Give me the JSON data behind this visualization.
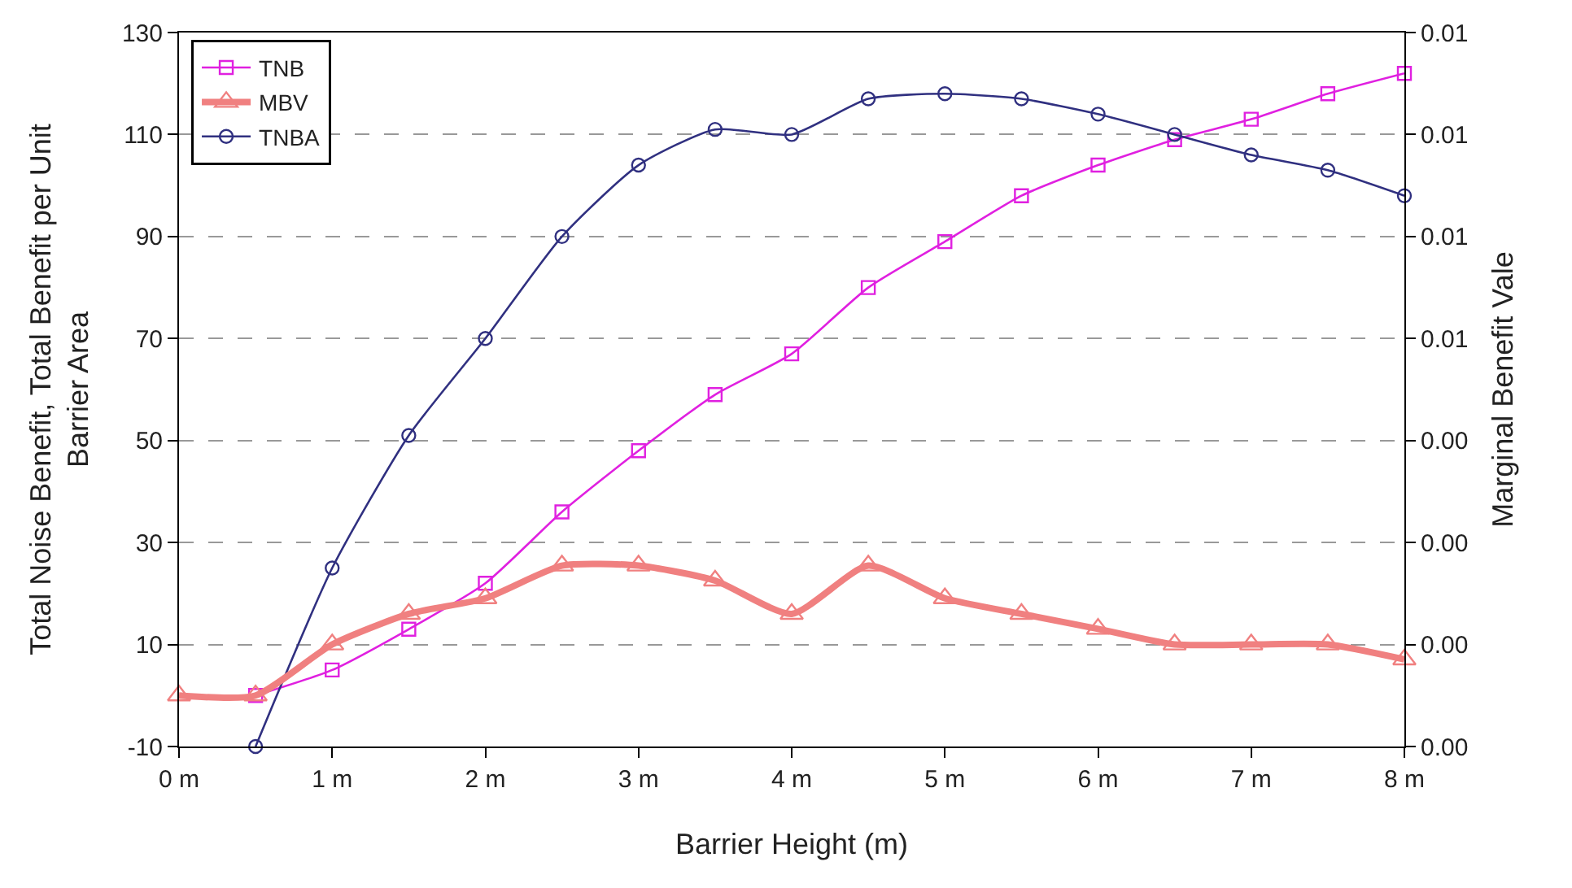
{
  "chart_data": {
    "type": "line",
    "xlabel": "Barrier Height (m)",
    "ylabel": "Total Noise Benefit, Total Benefit per Unit\nBarrier Area",
    "y2label": "Marginal Benefit Vale",
    "xlim": [
      0,
      8
    ],
    "xticks": [
      {
        "value": 0,
        "label": "0 m"
      },
      {
        "value": 1,
        "label": "1 m"
      },
      {
        "value": 2,
        "label": "2 m"
      },
      {
        "value": 3,
        "label": "3 m"
      },
      {
        "value": 4,
        "label": "4 m"
      },
      {
        "value": 5,
        "label": "5 m"
      },
      {
        "value": 6,
        "label": "6 m"
      },
      {
        "value": 7,
        "label": "7 m"
      },
      {
        "value": 8,
        "label": "8 m"
      }
    ],
    "ylim": [
      -10,
      130
    ],
    "yticks": [
      -10,
      10,
      30,
      50,
      70,
      90,
      110,
      130
    ],
    "y2lim": [
      0,
      0.0105
    ],
    "y2ticks": [
      {
        "value": 0,
        "label": "0.00"
      },
      {
        "value": 0.0015,
        "label": "0.00"
      },
      {
        "value": 0.003,
        "label": "0.00"
      },
      {
        "value": 0.0045,
        "label": "0.00"
      },
      {
        "value": 0.006,
        "label": "0.01"
      },
      {
        "value": 0.0075,
        "label": "0.01"
      },
      {
        "value": 0.009,
        "label": "0.01"
      },
      {
        "value": 0.0105,
        "label": "0.01"
      }
    ],
    "grid": "y",
    "legend": "top left",
    "line_style": "solid",
    "series": [
      {
        "name": "TNB",
        "color": "#e020e0",
        "marker": "square",
        "x": [
          0.5,
          1,
          1.5,
          2,
          2.5,
          3,
          3.5,
          4,
          4.5,
          5,
          5.5,
          6,
          6.5,
          7,
          7.5,
          8
        ],
        "values": [
          0,
          5,
          13,
          22,
          36,
          48,
          59,
          67,
          80,
          89,
          98,
          104,
          109,
          113,
          118,
          122
        ]
      },
      {
        "name": "MBV",
        "color": "#f08080",
        "marker": "triangle",
        "axis": "y2",
        "x": [
          0,
          0.5,
          1,
          1.5,
          2,
          2.5,
          3,
          3.5,
          4,
          4.5,
          5,
          5.5,
          6,
          6.5,
          7,
          7.5,
          8
        ],
        "values": [
          0.00075,
          0.00075,
          0.0015,
          0.00195,
          0.00218,
          0.00266,
          0.00266,
          0.00244,
          0.00195,
          0.00266,
          0.00218,
          0.00195,
          0.00173,
          0.0015,
          0.0015,
          0.0015,
          0.00128
        ]
      },
      {
        "name": "TNBA",
        "color": "#303080",
        "marker": "circle",
        "x": [
          0.5,
          1,
          1.5,
          2,
          2.5,
          3,
          3.5,
          4,
          4.5,
          5,
          5.5,
          6,
          6.5,
          7,
          7.5,
          8
        ],
        "values": [
          -10,
          25,
          51,
          70,
          90,
          104,
          111,
          110,
          117,
          118,
          117,
          114,
          110,
          106,
          103,
          98
        ]
      }
    ]
  }
}
